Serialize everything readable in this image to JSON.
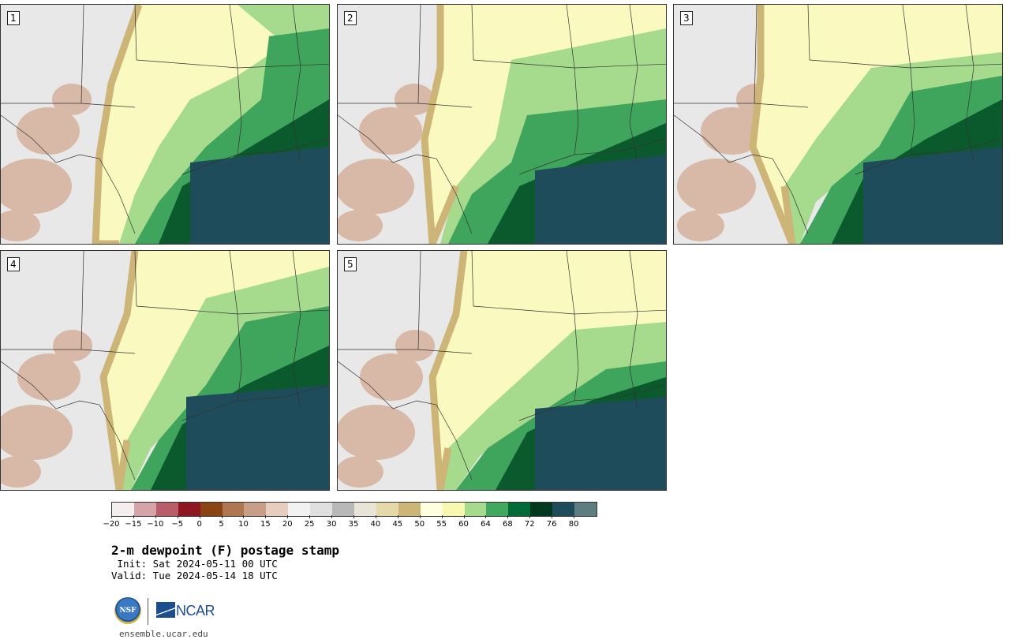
{
  "panels": [
    {
      "label": "1",
      "variant": 1
    },
    {
      "label": "2",
      "variant": 2
    },
    {
      "label": "3",
      "variant": 3
    },
    {
      "label": "4",
      "variant": 4
    },
    {
      "label": "5",
      "variant": 5
    }
  ],
  "colorbar": {
    "colors": [
      "#f5eeee",
      "#d5a3a8",
      "#b95e68",
      "#8e1721",
      "#8b4513",
      "#ae7752",
      "#c89f86",
      "#e6cdbd",
      "#f2f2f2",
      "#e0e0e0",
      "#b8b8b8",
      "#e8e4d8",
      "#e5d8a9",
      "#cdb577",
      "#ffffe0",
      "#f8f8b0",
      "#a6db8e",
      "#40a85f",
      "#006b36",
      "#00391d",
      "#1e4c5a",
      "#5d7d80"
    ],
    "ticks": [
      "−20",
      "−15",
      "−10",
      "−5",
      "0",
      "5",
      "10",
      "15",
      "20",
      "25",
      "30",
      "35",
      "40",
      "45",
      "50",
      "55",
      "60",
      "64",
      "68",
      "72",
      "76",
      "80"
    ]
  },
  "title": "2-m dewpoint (F) postage stamp",
  "init": " Init: Sat 2024-05-11 00 UTC",
  "valid": "Valid: Tue 2024-05-14 18 UTC",
  "logos": {
    "nsf": "NSF",
    "ncar": "NCAR"
  },
  "site": "ensemble.ucar.edu"
}
